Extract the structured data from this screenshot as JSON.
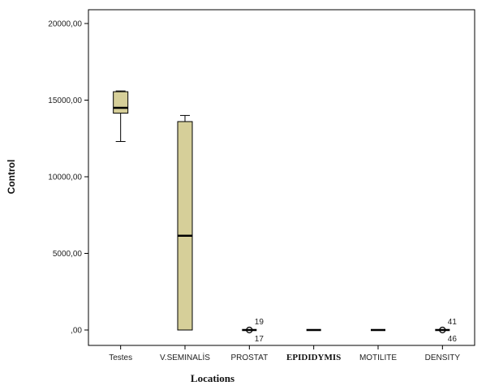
{
  "chart_data": {
    "type": "boxplot",
    "xlabel": "Locations",
    "ylabel": "Control",
    "ylim": [
      0,
      20000
    ],
    "yticks": [
      0,
      5000,
      10000,
      15000,
      20000
    ],
    "ytick_labels": [
      ",00",
      "5000,00",
      "10000,00",
      "15000,00",
      "20000,00"
    ],
    "grid": false,
    "box_color": "#d6cf99",
    "boxes": [
      {
        "category": "Testes",
        "min": 12300,
        "q1": 14150,
        "median": 14500,
        "q3": 15550,
        "max": 15600,
        "outliers": []
      },
      {
        "category": "V.SEMINALİS",
        "min": 0,
        "q1": 0,
        "median": 6150,
        "q3": 13600,
        "max": 14000,
        "outliers": []
      },
      {
        "category": "PROSTAT",
        "min": 0,
        "q1": 0,
        "median": 0,
        "q3": 0,
        "max": 0,
        "outliers": [
          {
            "value": 0,
            "labels": [
              "19",
              "17"
            ]
          }
        ]
      },
      {
        "category": "EPIDIDYMIS",
        "min": 0,
        "q1": 0,
        "median": 0,
        "q3": 0,
        "max": 0,
        "outliers": [],
        "bold_label": true
      },
      {
        "category": "MOTILITE",
        "min": 0,
        "q1": 0,
        "median": 0,
        "q3": 0,
        "max": 0,
        "outliers": []
      },
      {
        "category": "DENSITY",
        "min": 0,
        "q1": 0,
        "median": 0,
        "q3": 0,
        "max": 0,
        "outliers": [
          {
            "value": 0,
            "labels": [
              "41",
              "46"
            ]
          }
        ]
      }
    ]
  }
}
